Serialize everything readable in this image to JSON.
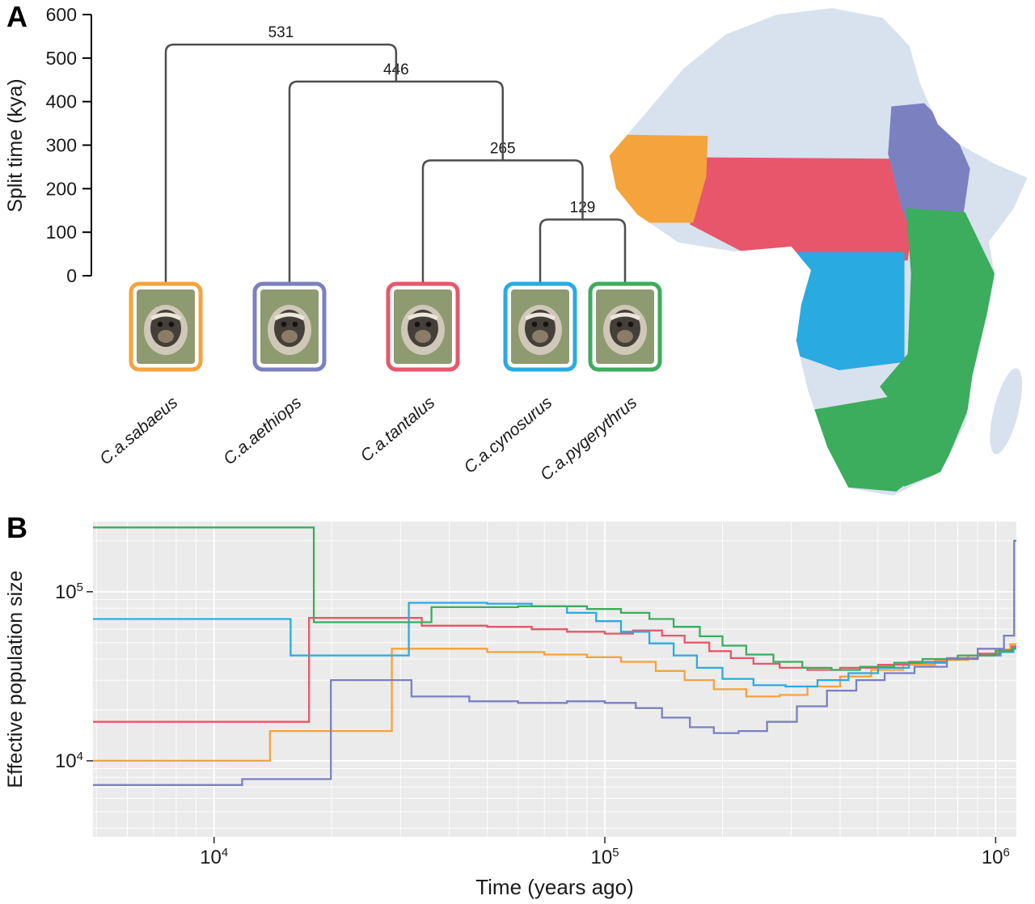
{
  "figure": {
    "panel_a_label": "A",
    "panel_b_label": "B"
  },
  "species": [
    {
      "id": "sabaeus",
      "label": "C.a.sabaeus",
      "color": "#F5A33C"
    },
    {
      "id": "aethiops",
      "label": "C.a.aethiops",
      "color": "#7B80C0"
    },
    {
      "id": "tantalus",
      "label": "C.a.tantalus",
      "color": "#E8566B"
    },
    {
      "id": "cynosurus",
      "label": "C.a.cynosurus",
      "color": "#29ABE2"
    },
    {
      "id": "pygerythrus",
      "label": "C.a.pygerythrus",
      "color": "#3BAD5C"
    }
  ],
  "panel_a": {
    "y_axis": {
      "label": "Split time (kya)",
      "max": 600,
      "ticks": [
        600,
        500,
        400,
        300,
        200,
        100,
        0
      ]
    },
    "tree": {
      "split": 531,
      "children": [
        {
          "species": "sabaeus"
        },
        {
          "split": 446,
          "children": [
            {
              "species": "aethiops"
            },
            {
              "split": 265,
              "children": [
                {
                  "species": "tantalus"
                },
                {
                  "split": 129,
                  "children": [
                    {
                      "species": "cynosurus"
                    },
                    {
                      "species": "pygerythrus"
                    }
                  ]
                }
              ]
            }
          ]
        }
      ]
    },
    "map": {
      "land_color": "#D8E1EE",
      "regions": [
        "sabaeus",
        "tantalus",
        "aethiops",
        "cynosurus",
        "pygerythrus"
      ]
    }
  },
  "chart_data": [
    {
      "type": "tree",
      "title": "Split time (kya)",
      "splits_kya": [
        531,
        446,
        265,
        129
      ],
      "tips": [
        "C.a.sabaeus",
        "C.a.aethiops",
        "C.a.tantalus",
        "C.a.cynosurus",
        "C.a.pygerythrus"
      ],
      "newick": "(C.a.sabaeus,(C.a.aethiops,(C.a.tantalus,(C.a.cynosurus,C.a.pygerythrus):129):265):446):531;"
    },
    {
      "type": "line",
      "subtype": "step",
      "xlabel": "Time (years ago)",
      "ylabel": "Effective population size",
      "xscale": "log",
      "yscale": "log",
      "xlim": [
        4900,
        1130000
      ],
      "ylim": [
        3550,
        260000
      ],
      "x_major_ticks": [
        10000,
        100000,
        1000000
      ],
      "y_major_ticks": [
        10000,
        100000
      ],
      "grid": "white major and minor log gridlines on gray panel",
      "panel_bg": "#EBEBEB",
      "legend": "none",
      "series": [
        {
          "species": "sabaeus",
          "name": "C.a.sabaeus",
          "points": [
            [
              4900,
              10000
            ],
            [
              13900,
              15000
            ],
            [
              28500,
              46000
            ],
            [
              50000,
              44000
            ],
            [
              70000,
              42500
            ],
            [
              90000,
              41000
            ],
            [
              110000,
              38500
            ],
            [
              135000,
              34000
            ],
            [
              160000,
              30000
            ],
            [
              190000,
              26500
            ],
            [
              230000,
              24000
            ],
            [
              280000,
              24500
            ],
            [
              330000,
              27500
            ],
            [
              400000,
              31500
            ],
            [
              480000,
              34500
            ],
            [
              580000,
              37000
            ],
            [
              700000,
              39500
            ],
            [
              850000,
              42000
            ],
            [
              1000000,
              45500
            ],
            [
              1090000,
              49000
            ]
          ]
        },
        {
          "species": "tantalus",
          "name": "C.a.tantalus",
          "points": [
            [
              4900,
              17000
            ],
            [
              17500,
              70000
            ],
            [
              34000,
              63000
            ],
            [
              50000,
              62000
            ],
            [
              65000,
              60000
            ],
            [
              80000,
              58000
            ],
            [
              100000,
              56500
            ],
            [
              118000,
              59000
            ],
            [
              140000,
              55000
            ],
            [
              160000,
              50000
            ],
            [
              185000,
              44500
            ],
            [
              210000,
              40500
            ],
            [
              240000,
              37500
            ],
            [
              280000,
              35500
            ],
            [
              330000,
              34500
            ],
            [
              400000,
              35500
            ],
            [
              500000,
              37000
            ],
            [
              600000,
              38500
            ],
            [
              750000,
              40500
            ],
            [
              900000,
              43000
            ],
            [
              1020000,
              45000
            ],
            [
              1100000,
              47500
            ]
          ]
        },
        {
          "species": "cynosurus",
          "name": "C.a.cynosurus",
          "points": [
            [
              4900,
              69000
            ],
            [
              15700,
              42000
            ],
            [
              31500,
              86000
            ],
            [
              50000,
              85000
            ],
            [
              65000,
              82000
            ],
            [
              80000,
              75000
            ],
            [
              95000,
              67000
            ],
            [
              110000,
              58000
            ],
            [
              130000,
              49500
            ],
            [
              150000,
              42000
            ],
            [
              172000,
              35500
            ],
            [
              200000,
              30500
            ],
            [
              240000,
              28000
            ],
            [
              290000,
              27500
            ],
            [
              350000,
              30000
            ],
            [
              420000,
              33000
            ],
            [
              500000,
              35500
            ],
            [
              600000,
              38000
            ],
            [
              750000,
              40000
            ],
            [
              900000,
              42000
            ],
            [
              1030000,
              44000
            ],
            [
              1110000,
              46500
            ]
          ]
        },
        {
          "species": "pygerythrus",
          "name": "C.a.pygerythrus",
          "points": [
            [
              4900,
              240000
            ],
            [
              18000,
              66000
            ],
            [
              36000,
              81000
            ],
            [
              60000,
              82000
            ],
            [
              90000,
              79000
            ],
            [
              110000,
              75000
            ],
            [
              130000,
              69000
            ],
            [
              150000,
              62000
            ],
            [
              175000,
              54500
            ],
            [
              200000,
              48000
            ],
            [
              230000,
              42500
            ],
            [
              270000,
              38500
            ],
            [
              320000,
              35500
            ],
            [
              380000,
              34500
            ],
            [
              450000,
              36000
            ],
            [
              550000,
              38000
            ],
            [
              650000,
              40000
            ],
            [
              800000,
              42000
            ],
            [
              1000000,
              44500
            ],
            [
              1100000,
              46000
            ]
          ]
        },
        {
          "species": "aethiops",
          "name": "C.a.aethiops",
          "points": [
            [
              4900,
              7200
            ],
            [
              11800,
              7800
            ],
            [
              19900,
              30000
            ],
            [
              32000,
              24000
            ],
            [
              45000,
              22500
            ],
            [
              60000,
              22000
            ],
            [
              80000,
              22500
            ],
            [
              100000,
              22000
            ],
            [
              120000,
              20500
            ],
            [
              140000,
              18000
            ],
            [
              165000,
              15800
            ],
            [
              190000,
              14600
            ],
            [
              220000,
              15000
            ],
            [
              260000,
              17000
            ],
            [
              310000,
              21000
            ],
            [
              370000,
              26000
            ],
            [
              440000,
              30000
            ],
            [
              520000,
              33000
            ],
            [
              620000,
              36000
            ],
            [
              750000,
              40000
            ],
            [
              900000,
              46000
            ],
            [
              1050000,
              55000
            ],
            [
              1115000,
              200000
            ]
          ]
        }
      ]
    }
  ]
}
